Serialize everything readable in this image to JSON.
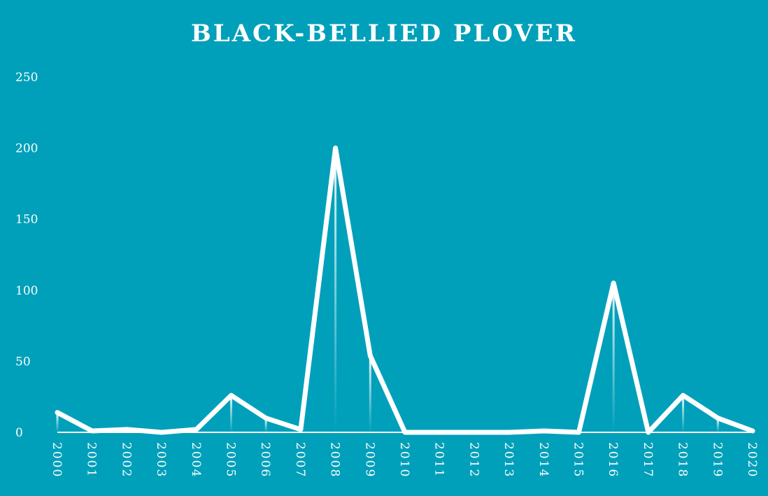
{
  "chart_data": {
    "type": "line",
    "title": "BLACK-BELLIED PLOVER",
    "xlabel": "",
    "ylabel": "",
    "x": [
      "2000",
      "2001",
      "2002",
      "2003",
      "2004",
      "2005",
      "2006",
      "2007",
      "2008",
      "2009",
      "2010",
      "2011",
      "2012",
      "2013",
      "2014",
      "2015",
      "2016",
      "2017",
      "2018",
      "2019",
      "2020"
    ],
    "values": [
      14,
      1,
      2,
      0,
      2,
      26,
      10,
      2,
      200,
      54,
      0,
      0,
      0,
      0,
      1,
      0,
      105,
      0,
      26,
      10,
      1
    ],
    "yticks": [
      "0",
      "50",
      "100",
      "150",
      "200",
      "250"
    ],
    "ylim": [
      0,
      250
    ],
    "grid": false,
    "legend": "none",
    "colors": {
      "background": "#00a0ba",
      "line": "#ffffff",
      "text": "#ffffff"
    }
  }
}
